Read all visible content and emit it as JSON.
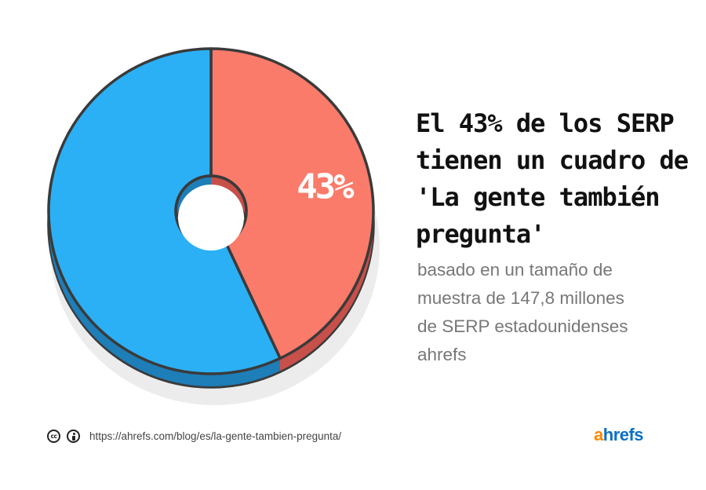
{
  "heading": {
    "line1": "El 43% de los SERP",
    "line2": "tienen un cuadro de",
    "line3": "'La gente también",
    "line4": "pregunta'"
  },
  "description": {
    "line1": "basado en un tamaño de",
    "line2": "muestra de 147,8 millones",
    "line3": "de SERP estadounidenses",
    "line4": "ahrefs"
  },
  "footer": {
    "cc_icon": "cc-icon",
    "cc_text": "cc",
    "by_icon": "attribution-icon",
    "url": "https://ahrefs.com/blog/es/la-gente-tambien-pregunta/"
  },
  "logo": {
    "first": "a",
    "rest": "hrefs"
  },
  "colors": {
    "highlight": "#fa7b6a",
    "highlight_side": "#c8504a",
    "rest": "#2bb0f5",
    "rest_side": "#1e7eb8",
    "outline": "#3a3a3a",
    "shadow": "#ececec"
  },
  "chart_data": {
    "type": "pie",
    "style": "3d-donut",
    "slices": [
      {
        "value": 43,
        "color": "#fa7b6a",
        "label": "43%"
      },
      {
        "value": 57,
        "color": "#2bb0f5"
      }
    ]
  }
}
